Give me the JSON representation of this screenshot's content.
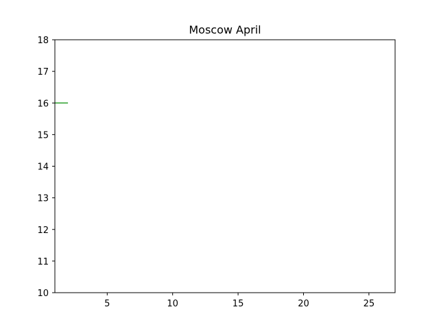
{
  "chart_data": {
    "type": "line",
    "title": "Moscow April",
    "xlabel": "",
    "ylabel": "",
    "xlim": [
      1,
      27
    ],
    "ylim": [
      10,
      18
    ],
    "x_ticks": [
      5,
      10,
      15,
      20,
      25
    ],
    "y_ticks": [
      10,
      11,
      12,
      13,
      14,
      15,
      16,
      17,
      18
    ],
    "grid": false,
    "legend": "none",
    "series": [
      {
        "color": "#2ca02c",
        "x": [
          1,
          2
        ],
        "y": [
          16,
          16
        ]
      }
    ]
  }
}
